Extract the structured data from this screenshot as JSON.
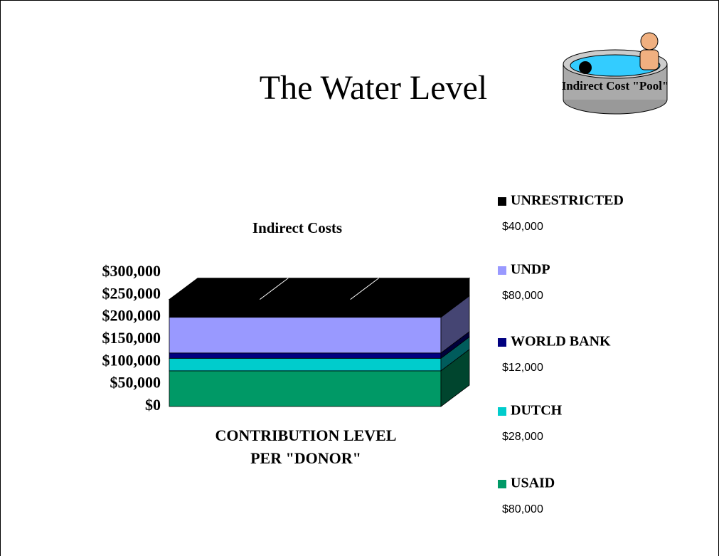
{
  "title": "The Water Level",
  "image_caption": "Indirect Cost \"Pool\"",
  "chart_data": {
    "type": "bar3d_stacked",
    "title": "Indirect Costs",
    "x_label": "CONTRIBUTION LEVEL PER \"DONOR\"",
    "ylim": [
      0,
      300000
    ],
    "yticks": [
      {
        "value": 0,
        "label": "$0"
      },
      {
        "value": 50000,
        "label": "$50,000"
      },
      {
        "value": 100000,
        "label": "$100,000"
      },
      {
        "value": 150000,
        "label": "$150,000"
      },
      {
        "value": 200000,
        "label": "$200,000"
      },
      {
        "value": 250000,
        "label": "$250,000"
      },
      {
        "value": 300000,
        "label": "$300,000"
      }
    ],
    "series": [
      {
        "name": "USAID",
        "color": "#009966",
        "values": [
          80000
        ],
        "value_labels": [
          "$80,000"
        ]
      },
      {
        "name": "DUTCH",
        "color": "#00cccc",
        "values": [
          28000
        ],
        "value_labels": [
          "$28,000"
        ]
      },
      {
        "name": "WORLD BANK",
        "color": "#000080",
        "values": [
          12000
        ],
        "value_labels": [
          "$12,000"
        ]
      },
      {
        "name": "UNDP",
        "color": "#9999ff",
        "values": [
          80000
        ],
        "value_labels": [
          "$80,000"
        ]
      },
      {
        "name": "UNRESTRICTED",
        "color": "#000000",
        "values": [
          40000
        ],
        "value_labels": [
          "$40,000"
        ]
      }
    ],
    "legend": "right"
  }
}
